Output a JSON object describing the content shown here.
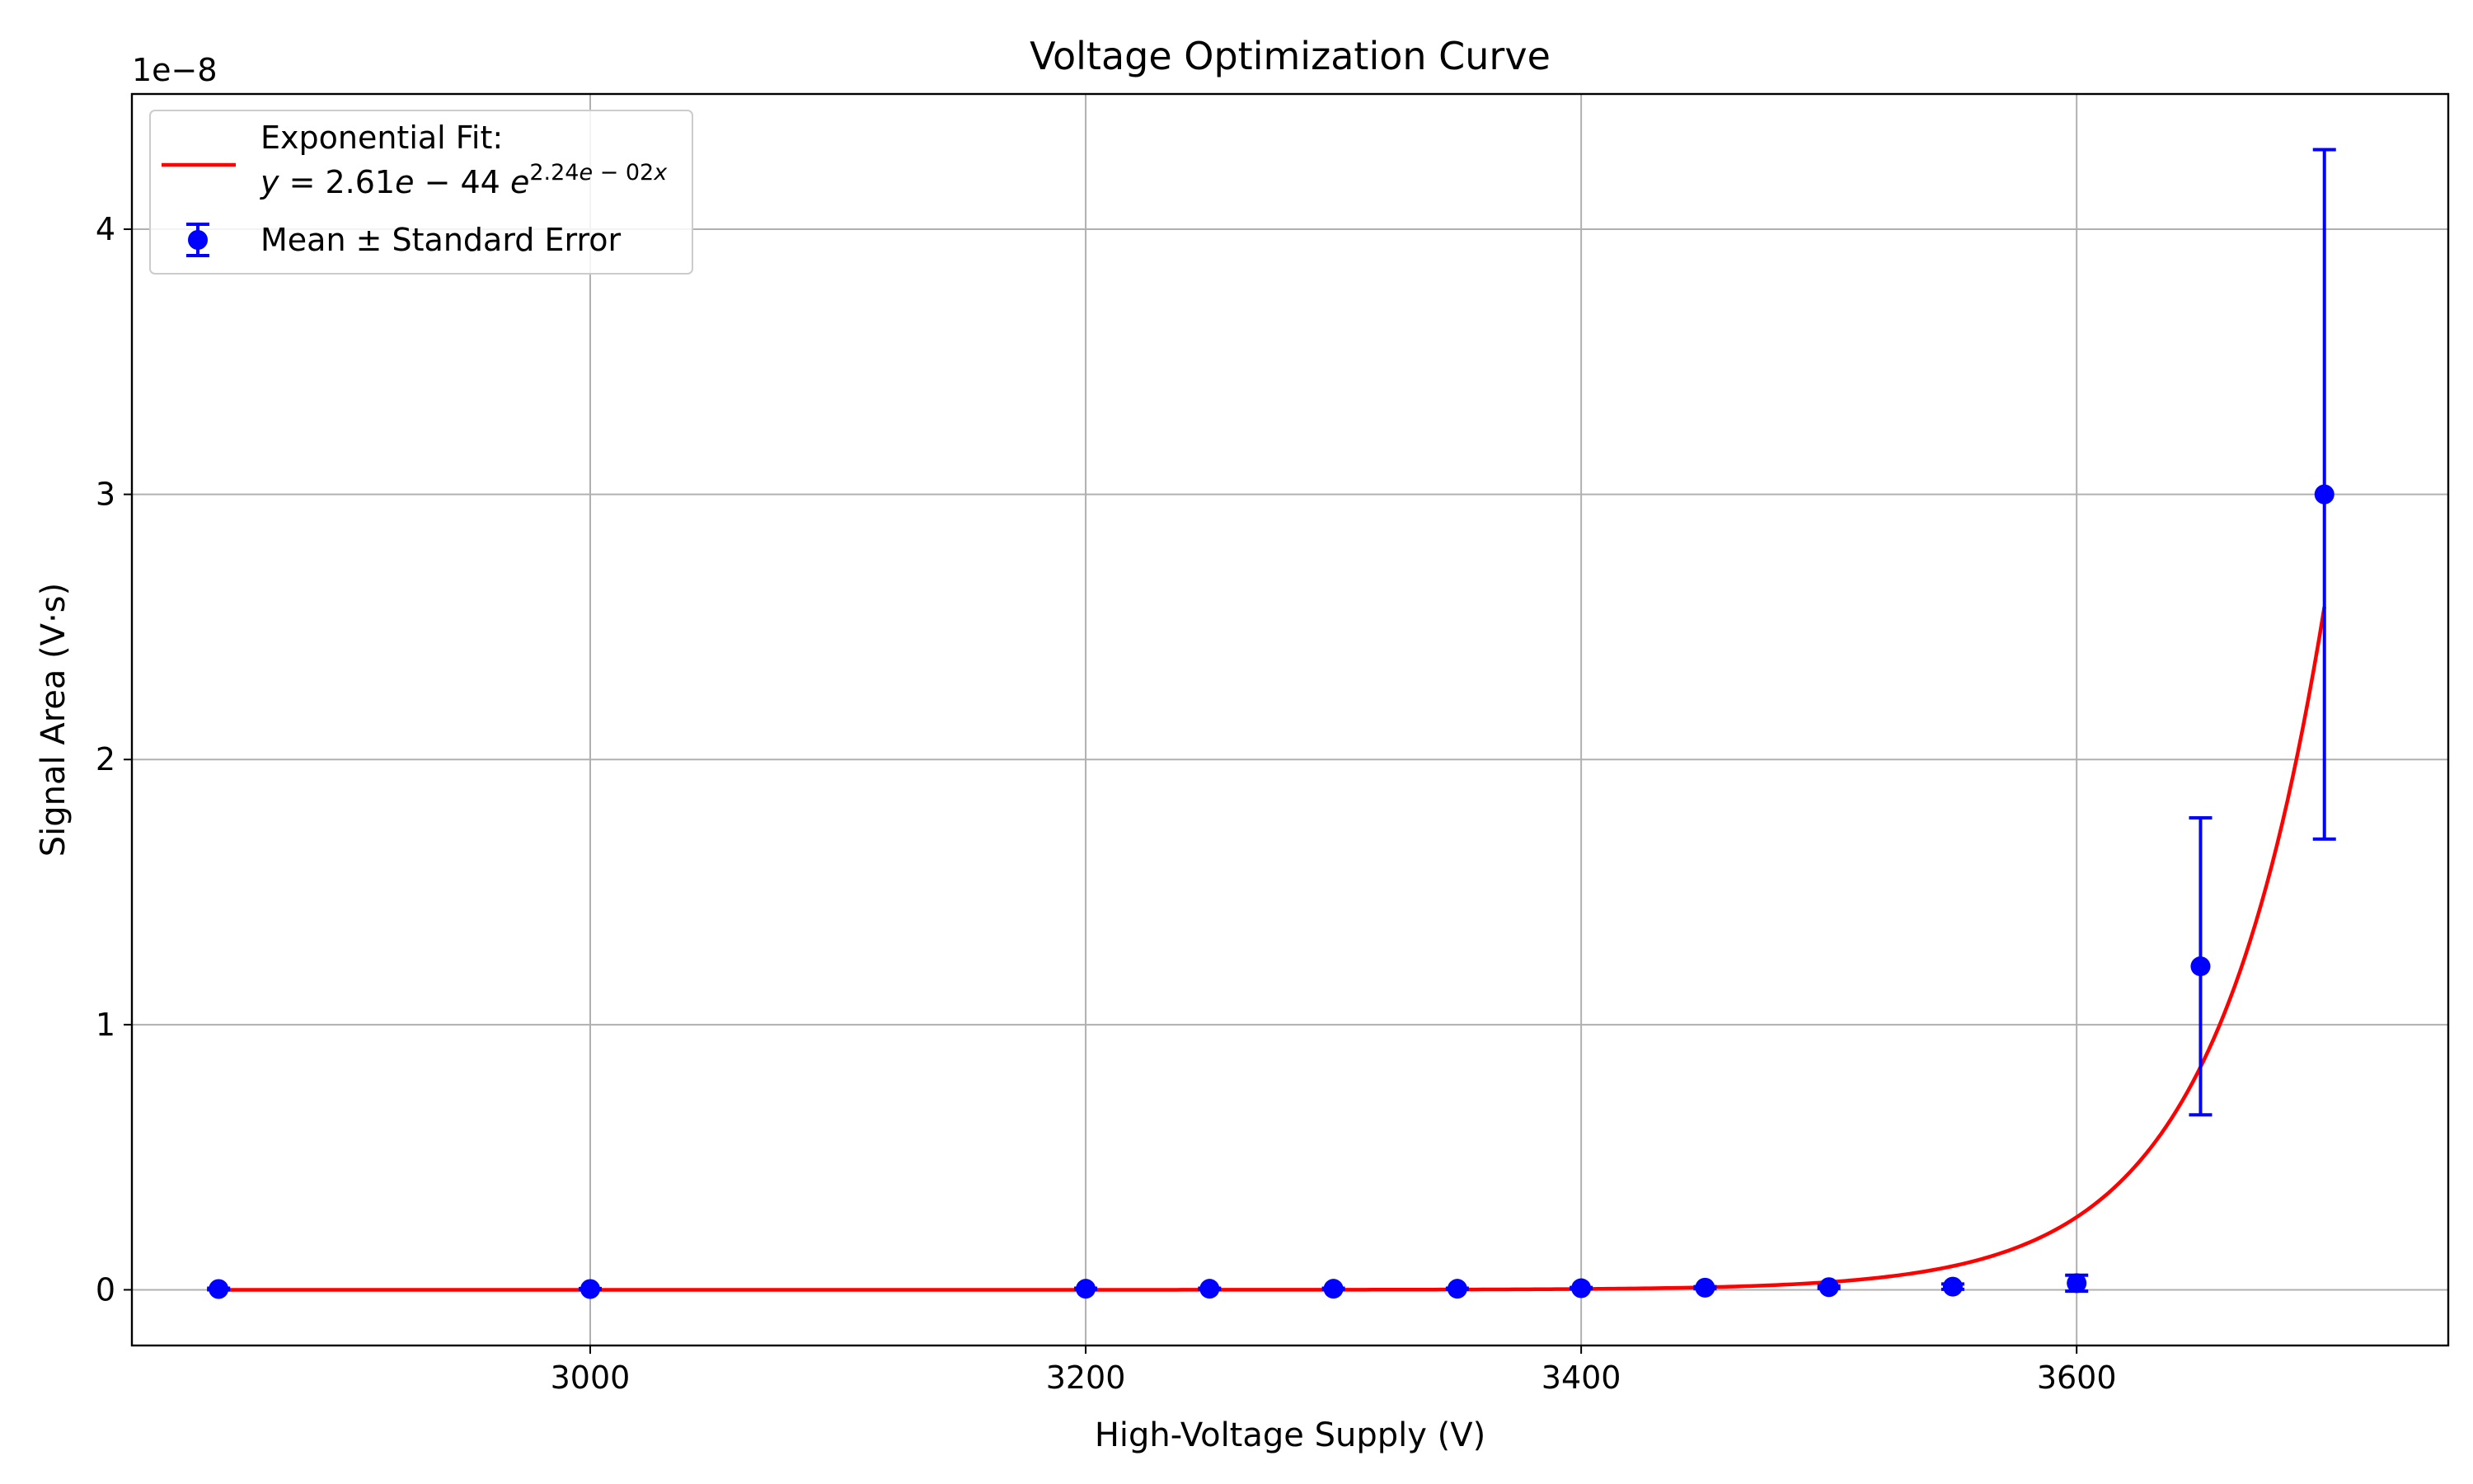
{
  "chart_data": {
    "type": "scatter",
    "title": "Voltage Optimization Curve",
    "xlabel": "High-Voltage Supply (V)",
    "ylabel": "Signal Area (V·s)",
    "y_offset_label": "1e−8",
    "xlim": [
      2815,
      3750
    ],
    "ylim": [
      -0.21,
      4.51
    ],
    "y_scale_factor": 1e-08,
    "x_ticks": [
      3000,
      3200,
      3400,
      3600
    ],
    "y_ticks": [
      0,
      1,
      2,
      3,
      4
    ],
    "grid": true,
    "legend_position": "top-left",
    "series": [
      {
        "name": "Mean ± Standard Error",
        "kind": "errorbar",
        "color": "#0000ff",
        "x": [
          2850,
          3000,
          3200,
          3250,
          3300,
          3350,
          3400,
          3450,
          3500,
          3550,
          3600,
          3650,
          3700
        ],
        "y": [
          0.003,
          0.003,
          0.004,
          0.004,
          0.004,
          0.004,
          0.006,
          0.008,
          0.01,
          0.012,
          0.025,
          1.22,
          3.0
        ],
        "yerr": [
          0.003,
          0.002,
          0.002,
          0.002,
          0.002,
          0.002,
          0.003,
          0.004,
          0.005,
          0.01,
          0.03,
          0.56,
          1.3
        ]
      },
      {
        "name": "Exponential Fit:",
        "name_formula": "y = 2.61e − 44 e^(2.24e − 02x)",
        "kind": "line",
        "color": "#ff0000",
        "fit": {
          "a": 2.61e-44,
          "b": 0.0224
        },
        "x_range": [
          2850,
          3700
        ]
      }
    ]
  }
}
